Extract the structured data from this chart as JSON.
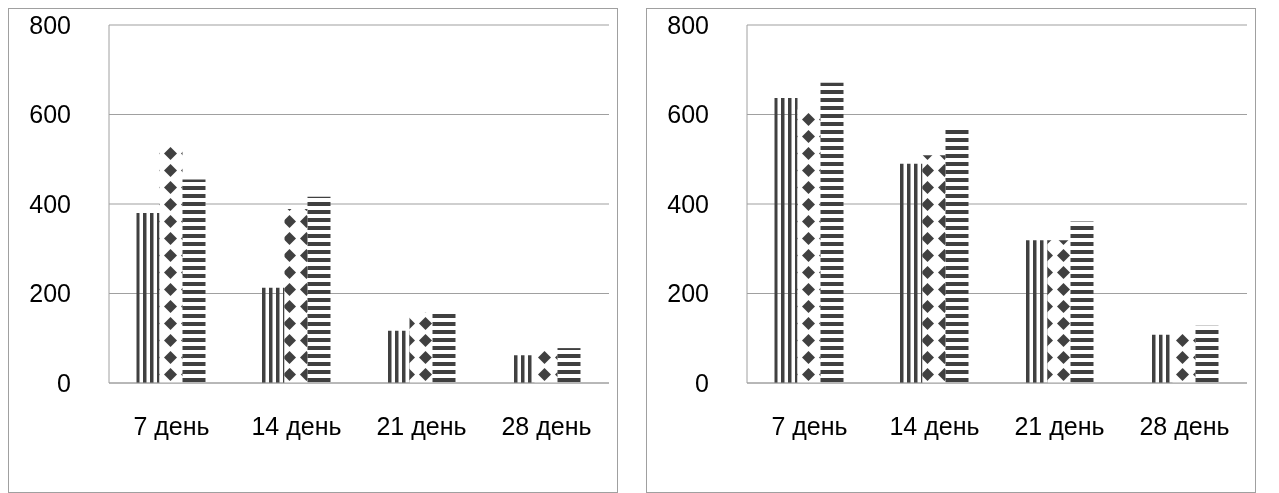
{
  "chart_data": [
    {
      "type": "bar",
      "categories": [
        "7 день",
        "14 день",
        "21 день",
        "28 день"
      ],
      "series": [
        {
          "color": "#404040",
          "values": [
            380,
            213,
            117,
            62
          ]
        },
        {
          "color": "#404040",
          "values": [
            530,
            389,
            157,
            77
          ]
        },
        {
          "color": "#404040",
          "values": [
            455,
            416,
            161,
            78
          ]
        }
      ],
      "ylim": [
        0,
        800
      ],
      "yticks": [
        0,
        200,
        400,
        600,
        800
      ],
      "grid": "y",
      "legend": false
    },
    {
      "type": "bar",
      "categories": [
        "7 день",
        "14 день",
        "21 день",
        "28 день"
      ],
      "series": [
        {
          "color": "#404040",
          "values": [
            637,
            490,
            319,
            108
          ]
        },
        {
          "color": "#404040",
          "values": [
            611,
            509,
            319,
            115
          ]
        },
        {
          "color": "#404040",
          "values": [
            671,
            569,
            361,
            128
          ]
        }
      ],
      "ylim": [
        0,
        800
      ],
      "yticks": [
        0,
        200,
        400,
        600,
        800
      ],
      "grid": "y",
      "legend": false
    }
  ]
}
